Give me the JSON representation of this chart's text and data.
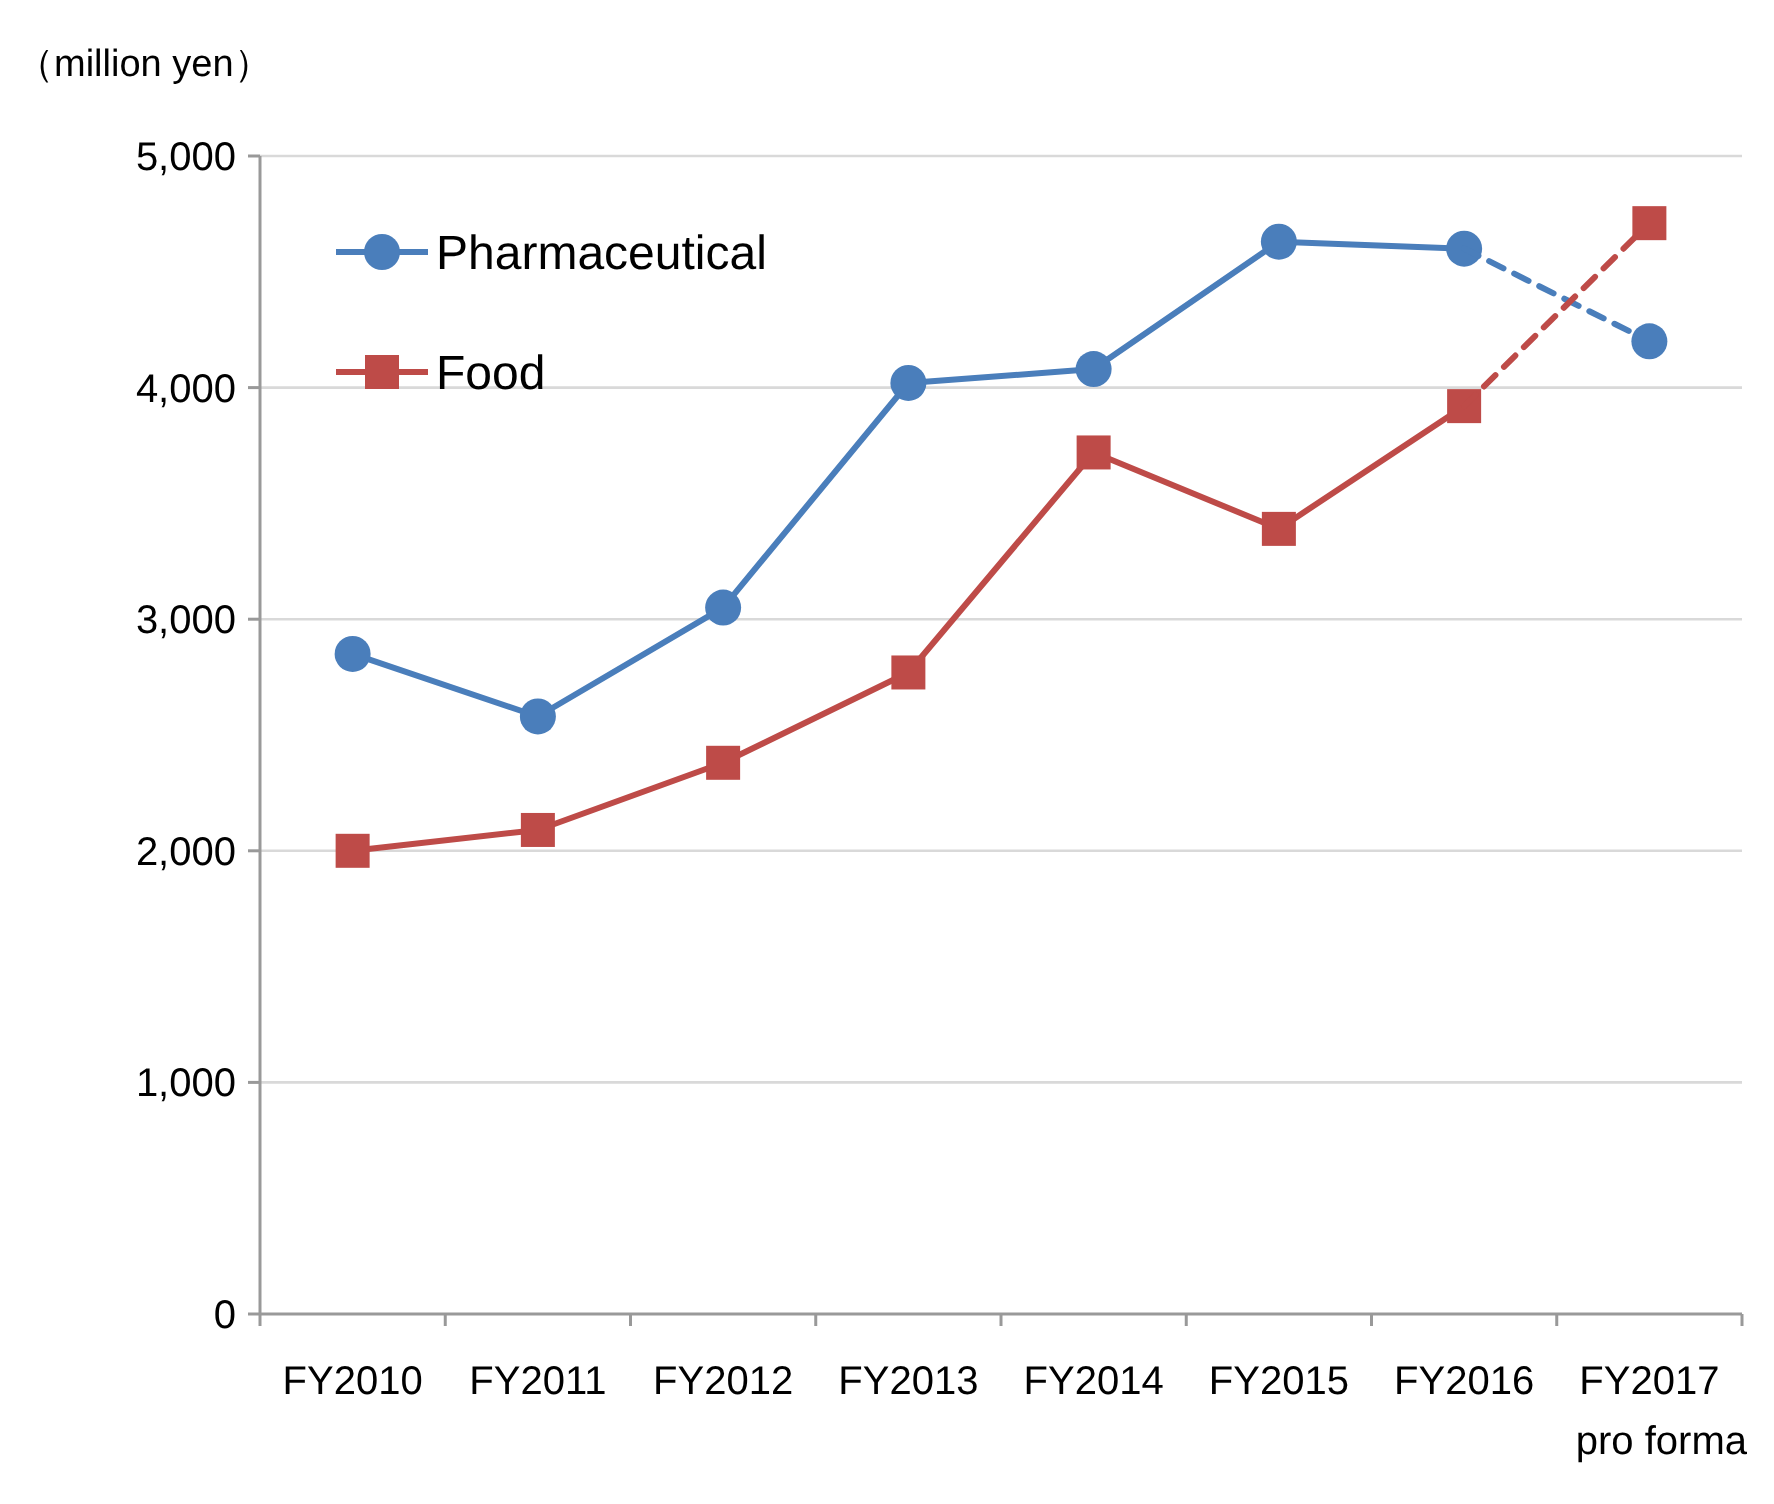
{
  "chart_data": {
    "type": "line",
    "ylabel": "（million yen）",
    "categories": [
      "FY2010",
      "FY2011",
      "FY2012",
      "FY2013",
      "FY2014",
      "FY2015",
      "FY2016",
      "FY2017\npro forma"
    ],
    "ylim": [
      0,
      5000
    ],
    "yticks": [
      {
        "value": 0,
        "label": "0"
      },
      {
        "value": 1000,
        "label": "1,000"
      },
      {
        "value": 2000,
        "label": "2,000"
      },
      {
        "value": 3000,
        "label": "3,000"
      },
      {
        "value": 4000,
        "label": "4,000"
      },
      {
        "value": 5000,
        "label": "5,000"
      }
    ],
    "grid": "y",
    "legend": "top left",
    "series": [
      {
        "name": "Pharmaceutical",
        "color": "#4a7ebb",
        "marker": "circle",
        "line_style": "solid",
        "values": [
          2850,
          2580,
          3050,
          4020,
          4080,
          4630,
          4600,
          null
        ]
      },
      {
        "name": "Food",
        "color": "#be4b48",
        "marker": "square",
        "line_style": "solid",
        "values": [
          2000,
          2090,
          2380,
          2770,
          3720,
          3390,
          3920,
          null
        ]
      },
      {
        "color": "#4a7ebb",
        "marker": "none",
        "line_style": "dashed",
        "values": [
          null,
          null,
          null,
          null,
          null,
          null,
          4600,
          4200
        ]
      },
      {
        "color": "#be4b48",
        "marker": "none",
        "line_style": "dashed",
        "values": [
          null,
          null,
          null,
          null,
          null,
          null,
          3920,
          4710
        ]
      },
      {
        "type": "scatter",
        "color": "#4a7ebb",
        "marker": "circle",
        "values": [
          null,
          null,
          null,
          null,
          null,
          null,
          null,
          4200
        ]
      },
      {
        "type": "scatter",
        "color": "#be4b48",
        "marker": "square",
        "values": [
          null,
          null,
          null,
          null,
          null,
          null,
          null,
          4710
        ]
      }
    ]
  }
}
